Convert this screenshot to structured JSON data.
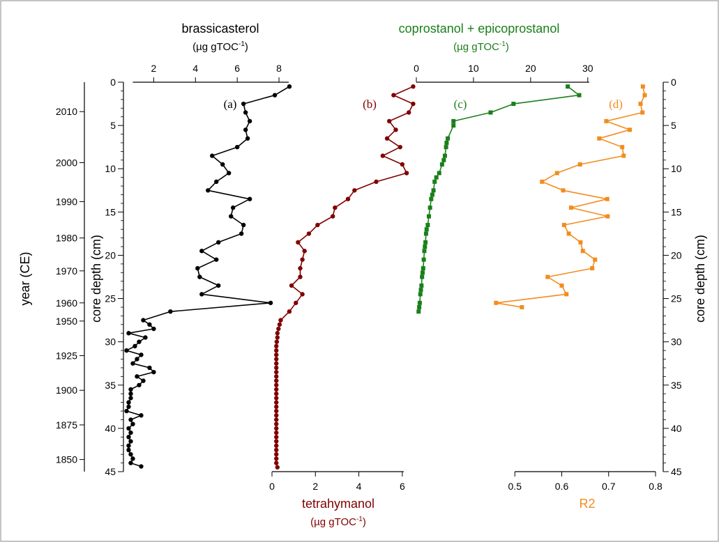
{
  "colors": {
    "brassicasterol": "#000000",
    "tetrahymanol": "#800000",
    "coprostanol": "#1a7f1a",
    "r2": "#f28c1e"
  },
  "chart_data": {
    "type": "line",
    "orientation": "vertical-depth",
    "depth_axis": {
      "label": "core depth (cm)",
      "range": [
        0,
        45
      ],
      "ticks": [
        0,
        5,
        10,
        15,
        20,
        25,
        30,
        35,
        40,
        45
      ]
    },
    "year_axis": {
      "label": "year (CE)",
      "ticks": [
        {
          "year": "2010",
          "depth": 3.4
        },
        {
          "year": "2000",
          "depth": 9.3
        },
        {
          "year": "1990",
          "depth": 13.8
        },
        {
          "year": "1980",
          "depth": 18.0
        },
        {
          "year": "1970",
          "depth": 21.8
        },
        {
          "year": "1960",
          "depth": 25.5
        },
        {
          "year": "1950",
          "depth": 27.6
        },
        {
          "year": "1925",
          "depth": 31.6
        },
        {
          "year": "1900",
          "depth": 35.6
        },
        {
          "year": "1875",
          "depth": 39.6
        },
        {
          "year": "1850",
          "depth": 43.6
        }
      ]
    },
    "panels": [
      {
        "id": "a",
        "label": "(a)",
        "title": "brassicasterol",
        "unit_base": "(µg gTOC",
        "unit_sup": "-1",
        "unit_close": ")",
        "xlim": [
          0.55,
          8.9
        ],
        "ticks": [
          2,
          4,
          6,
          8
        ],
        "marker": "circle",
        "color_key": "brassicasterol",
        "points": [
          [
            8.5,
            0.5
          ],
          [
            7.8,
            1.5
          ],
          [
            6.3,
            2.5
          ],
          [
            6.4,
            3.5
          ],
          [
            6.6,
            4.5
          ],
          [
            6.4,
            5.5
          ],
          [
            6.5,
            6.5
          ],
          [
            6.0,
            7.5
          ],
          [
            4.8,
            8.5
          ],
          [
            5.3,
            9.5
          ],
          [
            5.6,
            10.5
          ],
          [
            5.0,
            11.5
          ],
          [
            4.6,
            12.5
          ],
          [
            6.6,
            13.5
          ],
          [
            5.8,
            14.5
          ],
          [
            5.7,
            15.5
          ],
          [
            6.3,
            16.5
          ],
          [
            6.2,
            17.5
          ],
          [
            5.1,
            18.5
          ],
          [
            4.3,
            19.5
          ],
          [
            5.0,
            20.5
          ],
          [
            4.1,
            21.5
          ],
          [
            4.2,
            22.5
          ],
          [
            5.1,
            23.5
          ],
          [
            4.3,
            24.5
          ],
          [
            7.6,
            25.5
          ],
          [
            2.8,
            26.5
          ],
          [
            1.5,
            27.5
          ],
          [
            1.8,
            28.0
          ],
          [
            2.0,
            28.5
          ],
          [
            0.8,
            29.0
          ],
          [
            1.6,
            29.5
          ],
          [
            1.3,
            30.0
          ],
          [
            1.1,
            30.5
          ],
          [
            0.7,
            31.0
          ],
          [
            1.4,
            31.5
          ],
          [
            1.2,
            32.0
          ],
          [
            1.0,
            32.5
          ],
          [
            1.8,
            33.0
          ],
          [
            2.0,
            33.5
          ],
          [
            1.2,
            34.0
          ],
          [
            1.5,
            34.5
          ],
          [
            1.3,
            35.0
          ],
          [
            0.9,
            35.5
          ],
          [
            0.9,
            36.0
          ],
          [
            0.9,
            36.5
          ],
          [
            0.8,
            37.0
          ],
          [
            0.8,
            37.5
          ],
          [
            0.7,
            38.0
          ],
          [
            1.4,
            38.5
          ],
          [
            0.9,
            39.0
          ],
          [
            1.0,
            39.5
          ],
          [
            0.8,
            40.0
          ],
          [
            0.9,
            40.5
          ],
          [
            0.8,
            41.0
          ],
          [
            0.9,
            41.5
          ],
          [
            0.8,
            42.0
          ],
          [
            0.8,
            42.5
          ],
          [
            0.9,
            43.0
          ],
          [
            1.0,
            43.5
          ],
          [
            0.9,
            44.0
          ],
          [
            1.4,
            44.4
          ]
        ]
      },
      {
        "id": "b",
        "label": "(b)",
        "title": "tetrahymanol",
        "unit_base": "(µg gTOC",
        "unit_sup": "-1",
        "unit_close": ")",
        "xlim": [
          0,
          7
        ],
        "ticks": [
          0,
          2,
          4,
          6
        ],
        "marker": "circle",
        "color_key": "tetrahymanol",
        "points": [
          [
            6.5,
            0.5
          ],
          [
            5.6,
            1.5
          ],
          [
            6.5,
            2.5
          ],
          [
            6.3,
            3.5
          ],
          [
            5.4,
            4.5
          ],
          [
            5.7,
            5.5
          ],
          [
            5.3,
            6.5
          ],
          [
            5.9,
            7.5
          ],
          [
            5.1,
            8.5
          ],
          [
            6.0,
            9.5
          ],
          [
            6.2,
            10.5
          ],
          [
            4.8,
            11.5
          ],
          [
            3.8,
            12.5
          ],
          [
            3.5,
            13.5
          ],
          [
            2.9,
            14.5
          ],
          [
            2.8,
            15.5
          ],
          [
            2.1,
            16.5
          ],
          [
            1.7,
            17.5
          ],
          [
            1.2,
            18.5
          ],
          [
            1.5,
            19.5
          ],
          [
            1.4,
            20.5
          ],
          [
            1.3,
            21.5
          ],
          [
            1.3,
            22.5
          ],
          [
            0.9,
            23.5
          ],
          [
            1.4,
            24.5
          ],
          [
            1.1,
            25.5
          ],
          [
            0.8,
            26.5
          ],
          [
            0.4,
            27.5
          ],
          [
            0.35,
            28.0
          ],
          [
            0.3,
            28.5
          ],
          [
            0.25,
            29.0
          ],
          [
            0.25,
            29.5
          ],
          [
            0.22,
            30.0
          ],
          [
            0.2,
            30.5
          ],
          [
            0.2,
            31.0
          ],
          [
            0.2,
            31.5
          ],
          [
            0.2,
            32.0
          ],
          [
            0.2,
            32.5
          ],
          [
            0.2,
            33.0
          ],
          [
            0.2,
            33.5
          ],
          [
            0.2,
            34.0
          ],
          [
            0.2,
            34.5
          ],
          [
            0.2,
            35.0
          ],
          [
            0.2,
            35.5
          ],
          [
            0.2,
            36.0
          ],
          [
            0.2,
            36.5
          ],
          [
            0.2,
            37.0
          ],
          [
            0.2,
            37.5
          ],
          [
            0.2,
            38.0
          ],
          [
            0.2,
            38.5
          ],
          [
            0.2,
            39.0
          ],
          [
            0.2,
            39.5
          ],
          [
            0.2,
            40.0
          ],
          [
            0.2,
            40.5
          ],
          [
            0.2,
            41.0
          ],
          [
            0.2,
            41.5
          ],
          [
            0.2,
            42.0
          ],
          [
            0.2,
            42.5
          ],
          [
            0.2,
            43.0
          ],
          [
            0.2,
            43.5
          ],
          [
            0.2,
            44.0
          ],
          [
            0.25,
            44.5
          ]
        ]
      },
      {
        "id": "c",
        "label": "(c)",
        "title": "coprostanol + epicoprostanol",
        "unit_base": "(µg gTOC",
        "unit_sup": "-1",
        "unit_close": ")",
        "xlim": [
          0,
          31
        ],
        "ticks": [
          0,
          10,
          20,
          30
        ],
        "marker": "square",
        "color_key": "coprostanol",
        "points": [
          [
            26.5,
            0.5
          ],
          [
            28.5,
            1.5
          ],
          [
            17.0,
            2.5
          ],
          [
            13.0,
            3.5
          ],
          [
            6.5,
            4.5
          ],
          [
            6.5,
            5.0
          ],
          [
            5.5,
            6.5
          ],
          [
            5.3,
            7.0
          ],
          [
            5.2,
            7.5
          ],
          [
            5.0,
            8.5
          ],
          [
            4.8,
            9.0
          ],
          [
            4.5,
            9.5
          ],
          [
            4.0,
            10.5
          ],
          [
            3.5,
            11.0
          ],
          [
            3.2,
            11.5
          ],
          [
            3.0,
            12.5
          ],
          [
            2.8,
            13.0
          ],
          [
            2.6,
            13.5
          ],
          [
            2.4,
            14.5
          ],
          [
            2.2,
            15.5
          ],
          [
            2.0,
            16.5
          ],
          [
            1.8,
            17.0
          ],
          [
            1.7,
            17.5
          ],
          [
            1.6,
            18.5
          ],
          [
            1.5,
            19.0
          ],
          [
            1.4,
            19.5
          ],
          [
            1.3,
            20.5
          ],
          [
            1.2,
            21.5
          ],
          [
            1.1,
            22.0
          ],
          [
            1.0,
            22.5
          ],
          [
            0.9,
            23.5
          ],
          [
            0.8,
            24.0
          ],
          [
            0.7,
            24.5
          ],
          [
            0.6,
            25.5
          ],
          [
            0.5,
            26.0
          ],
          [
            0.4,
            26.5
          ]
        ]
      },
      {
        "id": "d",
        "label": "(d)",
        "title": "R2",
        "xlim": [
          0.4,
          0.8
        ],
        "ticks": [
          0.5,
          0.6,
          0.7,
          0.8
        ],
        "marker": "square",
        "color_key": "r2",
        "points": [
          [
            0.773,
            0.5
          ],
          [
            0.777,
            1.5
          ],
          [
            0.768,
            2.5
          ],
          [
            0.772,
            3.5
          ],
          [
            0.695,
            4.5
          ],
          [
            0.745,
            5.5
          ],
          [
            0.68,
            6.5
          ],
          [
            0.729,
            7.5
          ],
          [
            0.732,
            8.5
          ],
          [
            0.639,
            9.5
          ],
          [
            0.59,
            10.5
          ],
          [
            0.558,
            11.5
          ],
          [
            0.603,
            12.5
          ],
          [
            0.697,
            13.5
          ],
          [
            0.62,
            14.5
          ],
          [
            0.698,
            15.5
          ],
          [
            0.605,
            16.5
          ],
          [
            0.615,
            17.5
          ],
          [
            0.64,
            18.5
          ],
          [
            0.645,
            19.5
          ],
          [
            0.671,
            20.5
          ],
          [
            0.665,
            21.5
          ],
          [
            0.57,
            22.5
          ],
          [
            0.6,
            23.5
          ],
          [
            0.61,
            24.5
          ],
          [
            0.46,
            25.5
          ],
          [
            0.515,
            26.0
          ]
        ]
      }
    ]
  }
}
